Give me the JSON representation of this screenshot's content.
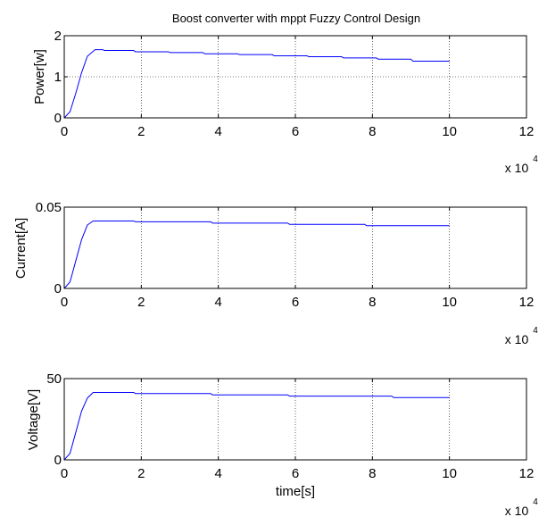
{
  "chart_data": [
    {
      "type": "line",
      "title": "Boost converter with mppt Fuzzy Control Design",
      "xlabel": "",
      "ylabel": "Power[w]",
      "x_multiplier": "x 10",
      "x_exponent": "4",
      "xlim": [
        0,
        12
      ],
      "ylim": [
        0,
        2
      ],
      "xticks": [
        "0",
        "2",
        "4",
        "6",
        "8",
        "10",
        "12"
      ],
      "yticks": [
        "0",
        "1",
        "2"
      ],
      "grid": true,
      "series": [
        {
          "color": "#0000ff",
          "x": [
            0,
            0.15,
            0.3,
            0.45,
            0.6,
            0.8,
            1.0,
            1.05,
            1.8,
            1.85,
            2.7,
            2.75,
            3.6,
            3.65,
            4.5,
            4.55,
            5.4,
            5.45,
            6.3,
            6.35,
            7.2,
            7.25,
            8.1,
            8.15,
            9.0,
            9.05,
            10.0
          ],
          "y": [
            0,
            0.15,
            0.6,
            1.1,
            1.5,
            1.66,
            1.66,
            1.64,
            1.64,
            1.61,
            1.61,
            1.59,
            1.59,
            1.56,
            1.56,
            1.54,
            1.54,
            1.51,
            1.51,
            1.49,
            1.49,
            1.46,
            1.46,
            1.43,
            1.43,
            1.38,
            1.38
          ]
        }
      ]
    },
    {
      "type": "line",
      "xlabel": "",
      "ylabel": "Current[A]",
      "x_multiplier": "x 10",
      "x_exponent": "4",
      "xlim": [
        0,
        12
      ],
      "ylim": [
        0,
        0.05
      ],
      "xticks": [
        "0",
        "2",
        "4",
        "6",
        "8",
        "10",
        "12"
      ],
      "yticks": [
        "0",
        "0.05"
      ],
      "grid": true,
      "series": [
        {
          "color": "#0000ff",
          "x": [
            0,
            0.15,
            0.3,
            0.45,
            0.6,
            0.75,
            1.8,
            1.85,
            3.8,
            3.85,
            5.8,
            5.85,
            7.8,
            7.85,
            10.0
          ],
          "y": [
            0,
            0.004,
            0.017,
            0.03,
            0.039,
            0.0415,
            0.0415,
            0.041,
            0.041,
            0.0402,
            0.0402,
            0.0394,
            0.0394,
            0.0386,
            0.0386
          ]
        }
      ]
    },
    {
      "type": "line",
      "xlabel": "time[s]",
      "ylabel": "Voltage[V]",
      "x_multiplier": "x 10",
      "x_exponent": "4",
      "xlim": [
        0,
        12
      ],
      "ylim": [
        0,
        50
      ],
      "xticks": [
        "0",
        "2",
        "4",
        "6",
        "8",
        "10",
        "12"
      ],
      "yticks": [
        "0",
        "50"
      ],
      "grid": true,
      "series": [
        {
          "color": "#0000ff",
          "x": [
            0,
            0.15,
            0.3,
            0.45,
            0.6,
            0.75,
            1.8,
            1.85,
            3.8,
            3.85,
            5.8,
            5.85,
            8.5,
            8.55,
            10.0
          ],
          "y": [
            0,
            4,
            17,
            30,
            38,
            41.5,
            41.5,
            40.8,
            40.8,
            40,
            40,
            39.2,
            39.2,
            38.3,
            38.3
          ]
        }
      ]
    }
  ]
}
